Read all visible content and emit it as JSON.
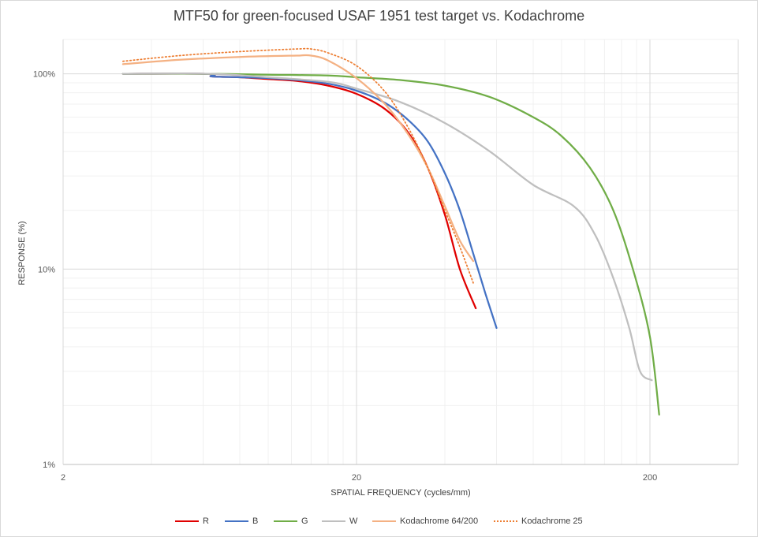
{
  "chart_data": {
    "type": "line",
    "title": "MTF50 for green-focused USAF 1951 test target vs. Kodachrome",
    "xlabel": "SPATIAL FREQUENCY (cycles/mm)",
    "ylabel": "RESPONSE (%)",
    "x_scale": "log",
    "y_scale": "log",
    "xlim": [
      2,
      400
    ],
    "ylim": [
      1,
      150
    ],
    "x_ticks": [
      2,
      20,
      200
    ],
    "x_tick_labels": [
      "2",
      "20",
      "200"
    ],
    "y_ticks": [
      1,
      10,
      100
    ],
    "y_tick_labels": [
      "1%",
      "10%",
      "100%"
    ],
    "grid": true,
    "legend_position": "bottom",
    "series": [
      {
        "name": "R",
        "color": "#E00000",
        "dash": "solid",
        "points": [
          [
            3.2,
            100
          ],
          [
            6.3,
            100
          ],
          [
            6.4,
            97
          ],
          [
            8,
            96
          ],
          [
            10,
            94
          ],
          [
            12.5,
            92
          ],
          [
            16,
            87
          ],
          [
            20,
            79
          ],
          [
            25,
            66
          ],
          [
            30,
            50
          ],
          [
            35,
            33
          ],
          [
            40,
            19
          ],
          [
            45,
            10
          ],
          [
            51,
            6.3
          ]
        ]
      },
      {
        "name": "B",
        "color": "#4472C4",
        "dash": "solid",
        "points": [
          [
            3.2,
            100
          ],
          [
            6.3,
            100
          ],
          [
            6.4,
            97
          ],
          [
            8,
            96
          ],
          [
            10,
            95
          ],
          [
            12.5,
            93
          ],
          [
            16,
            89
          ],
          [
            20,
            82
          ],
          [
            25,
            71
          ],
          [
            30,
            58
          ],
          [
            35,
            45
          ],
          [
            40,
            31
          ],
          [
            45,
            20
          ],
          [
            50,
            12
          ],
          [
            55,
            7.5
          ],
          [
            60,
            5
          ]
        ]
      },
      {
        "name": "G",
        "color": "#70AD47",
        "dash": "solid",
        "points": [
          [
            3.2,
            100
          ],
          [
            6.3,
            100
          ],
          [
            10,
            99
          ],
          [
            16,
            98
          ],
          [
            20,
            96
          ],
          [
            28,
            93
          ],
          [
            40,
            87
          ],
          [
            57,
            76
          ],
          [
            80,
            60
          ],
          [
            100,
            48
          ],
          [
            125,
            33
          ],
          [
            150,
            20
          ],
          [
            175,
            10
          ],
          [
            200,
            4.5
          ],
          [
            215,
            1.8
          ]
        ]
      },
      {
        "name": "W",
        "color": "#BFBFBF",
        "dash": "solid",
        "points": [
          [
            3.2,
            100
          ],
          [
            6.3,
            100
          ],
          [
            10,
            96
          ],
          [
            16,
            91
          ],
          [
            20,
            84
          ],
          [
            28,
            72
          ],
          [
            40,
            56
          ],
          [
            57,
            40
          ],
          [
            80,
            27
          ],
          [
            110,
            21
          ],
          [
            130,
            15
          ],
          [
            150,
            9
          ],
          [
            170,
            5
          ],
          [
            185,
            3
          ],
          [
            203,
            2.7
          ]
        ]
      },
      {
        "name": "Kodachrome 64/200",
        "color": "#F4B183",
        "dash": "solid",
        "points": [
          [
            3.2,
            112
          ],
          [
            5,
            118
          ],
          [
            8,
            122
          ],
          [
            12.5,
            124
          ],
          [
            14,
            124
          ],
          [
            16,
            117
          ],
          [
            20,
            95
          ],
          [
            25,
            70
          ],
          [
            30,
            49
          ],
          [
            35,
            33
          ],
          [
            40,
            21
          ],
          [
            45,
            14
          ],
          [
            50,
            11
          ]
        ]
      },
      {
        "name": "Kodachrome 25",
        "color": "#ED7D31",
        "dash": "dotted",
        "points": [
          [
            3.2,
            116
          ],
          [
            5,
            124
          ],
          [
            8,
            130
          ],
          [
            12.5,
            134
          ],
          [
            14,
            134
          ],
          [
            16,
            128
          ],
          [
            20,
            110
          ],
          [
            25,
            81
          ],
          [
            30,
            53
          ],
          [
            35,
            33
          ],
          [
            40,
            20
          ],
          [
            45,
            13
          ],
          [
            50,
            8.5
          ]
        ]
      }
    ]
  }
}
